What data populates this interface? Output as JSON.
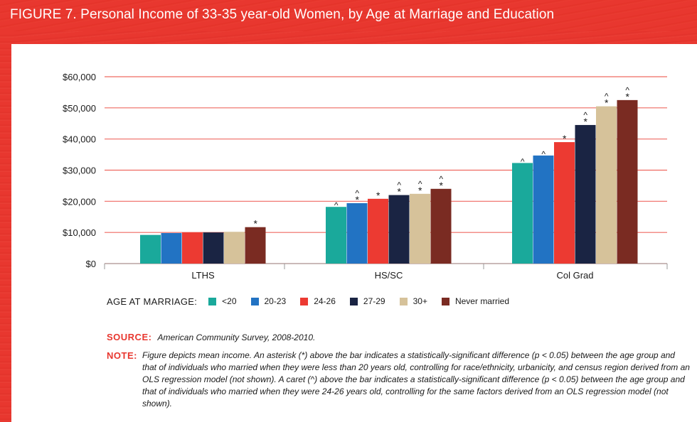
{
  "header": {
    "title": "FIGURE 7.   Personal Income of 33-35 year-old Women, by Age at Marriage and Education"
  },
  "chart_data": {
    "type": "bar",
    "title": "Personal Income of 33-35 year-old Women, by Age at Marriage and Education",
    "categories": [
      "LTHS",
      "HS/SC",
      "Col Grad"
    ],
    "ylim": [
      0,
      60000
    ],
    "yticks": [
      0,
      10000,
      20000,
      30000,
      40000,
      50000,
      60000
    ],
    "ytick_labels": [
      "$0",
      "$10,000",
      "$20,000",
      "$30,000",
      "$40,000",
      "$50,000",
      "$60,000"
    ],
    "grid": true,
    "series": [
      {
        "name": "<20",
        "color": "#1aa99b",
        "values": [
          9200,
          18200,
          32300
        ],
        "marks": [
          "",
          "^",
          "^"
        ]
      },
      {
        "name": "20-23",
        "color": "#2273c3",
        "values": [
          9800,
          19400,
          34700
        ],
        "marks": [
          "",
          "^*",
          "^"
        ]
      },
      {
        "name": "24-26",
        "color": "#ec3a32",
        "values": [
          10000,
          20800,
          39000
        ],
        "marks": [
          "",
          "*",
          "*"
        ]
      },
      {
        "name": "27-29",
        "color": "#1a2443",
        "values": [
          10000,
          22000,
          44500
        ],
        "marks": [
          "",
          "^*",
          "^*"
        ]
      },
      {
        "name": "30+",
        "color": "#d6c29a",
        "values": [
          10200,
          22400,
          50500
        ],
        "marks": [
          "",
          "^*",
          "^*"
        ]
      },
      {
        "name": "Never married",
        "color": "#7a2b22",
        "values": [
          11700,
          24000,
          52500
        ],
        "marks": [
          "*",
          "^*",
          "^*"
        ]
      }
    ]
  },
  "legend": {
    "title": "AGE AT MARRIAGE:"
  },
  "source": {
    "label": "SOURCE:",
    "text": "American Community Survey, 2008-2010."
  },
  "note": {
    "label": "NOTE:",
    "text": "Figure depicts mean income. An asterisk (*) above the bar indicates a statistically-significant difference (p < 0.05) between the age group and that of individuals who married when they were less than 20 years old, controlling for race/ethnicity, urbanicity, and census region derived from an OLS regression model (not shown). A caret (^) above the bar indicates a statistically-significant difference (p < 0.05) between the age group and that of individuals who married when they were 24-26 years old, controlling for the same factors derived from an OLS regression model (not shown)."
  }
}
